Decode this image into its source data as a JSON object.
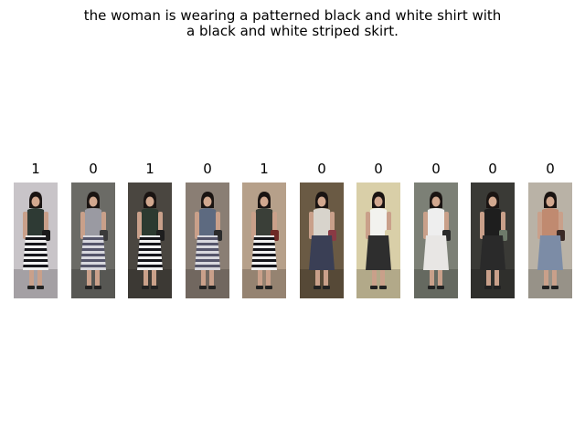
{
  "query": {
    "line1": "the woman is wearing a patterned black and white shirt with",
    "line2": "a black and white striped skirt."
  },
  "gallery": [
    {
      "label": "1",
      "bg": "#c8c4c8",
      "top": "#2e3a34",
      "bottom": "stripes",
      "accent": "#1b1b1b"
    },
    {
      "label": "0",
      "bg": "#6b6b66",
      "top": "#9a9aa2",
      "bottom": "stripes-light",
      "accent": "#3a3a3a"
    },
    {
      "label": "1",
      "bg": "#4a4640",
      "top": "#2c3a30",
      "bottom": "stripes",
      "accent": "#1e1e1e"
    },
    {
      "label": "0",
      "bg": "#8a7e74",
      "top": "#5d6a80",
      "bottom": "stripes-light",
      "accent": "#2b2b2b"
    },
    {
      "label": "1",
      "bg": "#b6a08a",
      "top": "#3a3f38",
      "bottom": "stripes",
      "accent": "#6e2a26"
    },
    {
      "label": "0",
      "bg": "#6a5a44",
      "top": "#d8d4cc",
      "bottom": "#3a3f55",
      "accent": "#8a3a44"
    },
    {
      "label": "0",
      "bg": "#d9cfa8",
      "top": "#f2f2ee",
      "bottom": "#2e2e2e",
      "accent": "#d9cfa8"
    },
    {
      "label": "0",
      "bg": "#7c8076",
      "top": "#eeeeee",
      "bottom": "#e8e6e4",
      "accent": "#2a2a2a"
    },
    {
      "label": "0",
      "bg": "#3a3a36",
      "top": "#1e1e1e",
      "bottom": "#2a2a2a",
      "accent": "#6e7a6a"
    },
    {
      "label": "0",
      "bg": "#b9b2a6",
      "top": "#c08a70",
      "bottom": "#7c8ca6",
      "accent": "#3a2a26"
    }
  ]
}
